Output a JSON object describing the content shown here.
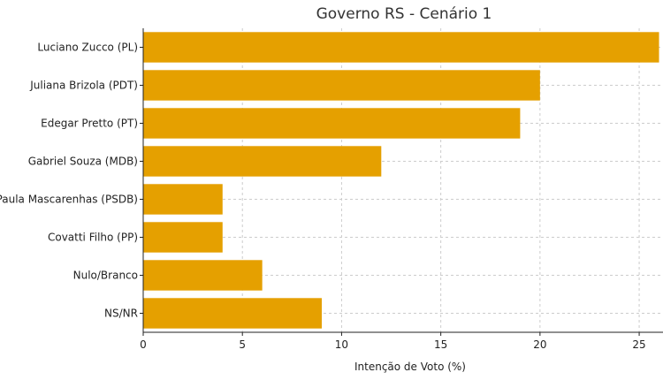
{
  "chart_data": {
    "type": "bar",
    "orientation": "horizontal",
    "title": "Governo RS - Cenário 1",
    "xlabel": "Intenção de Voto (%)",
    "ylabel": "",
    "categories": [
      "Luciano Zucco (PL)",
      "Juliana Brizola (PDT)",
      "Edegar Pretto (PT)",
      "Gabriel Souza (MDB)",
      "Paula Mascarenhas (PSDB)",
      "Covatti Filho (PP)",
      "Nulo/Branco",
      "NS/NR"
    ],
    "values": [
      26,
      20,
      19,
      12,
      4,
      4,
      6,
      9
    ],
    "xlim": [
      0,
      26.2
    ],
    "xticks": [
      0,
      5,
      10,
      15,
      20,
      25
    ],
    "grid": true,
    "bar_color": "#e5a000"
  }
}
